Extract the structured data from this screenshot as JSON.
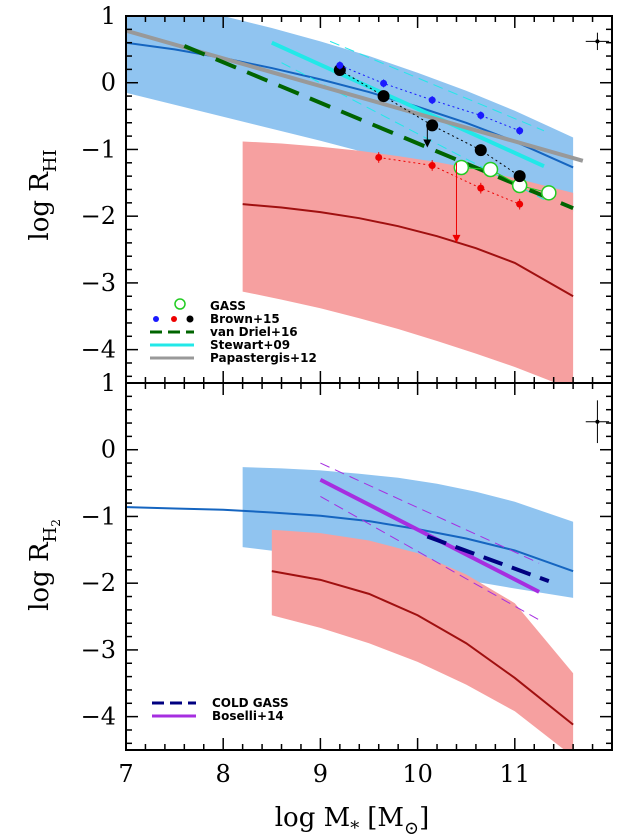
{
  "chart_data": {
    "type": "line",
    "xlabel": "log M",
    "xlabel_sub": "*",
    "xlabel_unit": "[M",
    "xlabel_unit_sub": "⊙",
    "xlabel_unit_end": "]",
    "xlim": [
      7,
      12
    ],
    "x_ticks": [
      7,
      8,
      9,
      10,
      11
    ],
    "panels": [
      {
        "id": "hi",
        "ylabel": "log R",
        "ylabel_sub": "HI",
        "ylim": [
          -4.5,
          1
        ],
        "y_ticks": [
          1,
          0,
          -1,
          -2,
          -3,
          -4
        ],
        "series": [
          {
            "kind": "band",
            "color": "#90c4f0",
            "x": [
              7,
              7.5,
              8,
              8.5,
              9,
              9.5,
              10,
              10.5,
              11,
              11.6
            ],
            "lower": [
              -0.15,
              -0.33,
              -0.51,
              -0.69,
              -0.87,
              -1.06,
              -1.25,
              -1.45,
              -1.66,
              -1.93
            ],
            "upper": [
              1.3,
              1.16,
              1.0,
              0.82,
              0.62,
              0.4,
              0.15,
              -0.12,
              -0.42,
              -0.82
            ]
          },
          {
            "kind": "line",
            "color": "#1565c0",
            "x": [
              7,
              7.5,
              8,
              8.5,
              9,
              9.5,
              10,
              10.5,
              11,
              11.6
            ],
            "y": [
              0.6,
              0.5,
              0.37,
              0.22,
              0.05,
              -0.14,
              -0.36,
              -0.6,
              -0.88,
              -1.27
            ]
          },
          {
            "kind": "band",
            "color": "#f6a0a0",
            "x": [
              8.2,
              8.6,
              9,
              9.4,
              9.8,
              10.2,
              10.6,
              11,
              11.6
            ],
            "lower": [
              -3.13,
              -3.25,
              -3.38,
              -3.53,
              -3.69,
              -3.87,
              -4.06,
              -4.26,
              -4.6
            ],
            "upper": [
              -0.88,
              -0.91,
              -0.96,
              -1.02,
              -1.1,
              -1.19,
              -1.3,
              -1.43,
              -1.65
            ]
          },
          {
            "kind": "line",
            "color": "#a01010",
            "x": [
              8.2,
              8.6,
              9,
              9.4,
              9.8,
              10.2,
              10.6,
              11,
              11.6
            ],
            "y": [
              -1.82,
              -1.87,
              -1.94,
              -2.03,
              -2.15,
              -2.3,
              -2.48,
              -2.7,
              -3.2
            ]
          },
          {
            "name": "Stewart+09",
            "kind": "line",
            "color": "#22e8e8",
            "width": 4,
            "x": [
              8.5,
              11.3
            ],
            "y": [
              0.6,
              -1.25
            ]
          },
          {
            "kind": "line",
            "color": "#22e8e8",
            "width": 1,
            "dash": "10,6",
            "x": [
              9.1,
              11.3
            ],
            "y": [
              0.62,
              -0.72
            ]
          },
          {
            "kind": "line",
            "color": "#22e8e8",
            "width": 1,
            "dash": "10,6",
            "x": [
              8.6,
              11.3
            ],
            "y": [
              0.3,
              -1.75
            ]
          },
          {
            "name": "Papastergis+12",
            "kind": "line",
            "color": "#999999",
            "width": 4,
            "x": [
              7,
              11.7
            ],
            "y": [
              0.78,
              -1.17
            ]
          },
          {
            "name": "van Driel+16",
            "kind": "line",
            "color": "#006400",
            "width": 4,
            "dash": "22,12",
            "x": [
              7.6,
              11.6
            ],
            "y": [
              0.55,
              -1.88
            ]
          },
          {
            "name": "GASS",
            "kind": "points",
            "color": "#22cc22",
            "hollow": true,
            "connect": true,
            "size": 7,
            "x": [
              10.45,
              10.75,
              11.05,
              11.35
            ],
            "y": [
              -1.27,
              -1.3,
              -1.54,
              -1.65
            ]
          },
          {
            "name": "Brown+15",
            "kind": "points",
            "color": "#000000",
            "connect": true,
            "dash": "2,3",
            "size": 6,
            "x": [
              9.2,
              9.65,
              10.15,
              10.65,
              11.05
            ],
            "y": [
              0.19,
              -0.2,
              -0.64,
              -1.01,
              -1.4
            ],
            "yerr": 0.08
          },
          {
            "kind": "points",
            "color": "#1a1aff",
            "connect": true,
            "dash": "2,3",
            "size": 3.5,
            "x": [
              9.2,
              9.65,
              10.15,
              10.65,
              11.05
            ],
            "y": [
              0.26,
              -0.01,
              -0.26,
              -0.49,
              -0.72
            ],
            "yerr": 0.06
          },
          {
            "kind": "points",
            "color": "#ee0000",
            "connect": true,
            "dash": "2,3",
            "size": 3.5,
            "x": [
              9.6,
              10.15,
              10.65,
              11.05
            ],
            "y": [
              -1.12,
              -1.24,
              -1.58,
              -1.82
            ],
            "yerr": 0.08
          }
        ],
        "arrows": [
          {
            "color": "#000000",
            "x": 10.1,
            "y_from": -0.6,
            "y_to": -0.97
          },
          {
            "color": "#ee0000",
            "x": 10.4,
            "y_from": -1.2,
            "y_to": -2.4
          }
        ],
        "corner_error": {
          "x": 11.85,
          "y": 0.62,
          "dx": 0.12,
          "dy": 0.13
        }
      },
      {
        "id": "h2",
        "ylabel": "log R",
        "ylabel_sub": "H",
        "ylabel_subsub": "2",
        "ylim": [
          -4.5,
          1
        ],
        "y_ticks": [
          1,
          0,
          -1,
          -2,
          -3,
          -4
        ],
        "series": [
          {
            "kind": "band",
            "color": "#90c4f0",
            "x": [
              8.2,
              8.6,
              9,
              9.4,
              9.8,
              10.2,
              10.6,
              11,
              11.6
            ],
            "lower": [
              -1.46,
              -1.53,
              -1.6,
              -1.69,
              -1.78,
              -1.88,
              -1.98,
              -2.08,
              -2.22
            ],
            "upper": [
              -0.26,
              -0.28,
              -0.31,
              -0.36,
              -0.42,
              -0.51,
              -0.63,
              -0.78,
              -1.08
            ]
          },
          {
            "kind": "line",
            "color": "#1565c0",
            "x": [
              7,
              7.5,
              8,
              8.5,
              9,
              9.5,
              10,
              10.5,
              11,
              11.6
            ],
            "y": [
              -0.86,
              -0.88,
              -0.9,
              -0.94,
              -0.99,
              -1.07,
              -1.19,
              -1.33,
              -1.51,
              -1.82
            ]
          },
          {
            "kind": "band",
            "color": "#f6a0a0",
            "x": [
              8.5,
              9,
              9.5,
              10,
              10.5,
              11,
              11.6
            ],
            "lower": [
              -2.48,
              -2.67,
              -2.9,
              -3.18,
              -3.52,
              -3.92,
              -4.6
            ],
            "upper": [
              -1.2,
              -1.25,
              -1.36,
              -1.55,
              -1.87,
              -2.3,
              -3.35
            ]
          },
          {
            "kind": "line",
            "color": "#a01010",
            "x": [
              8.5,
              9,
              9.5,
              10,
              10.5,
              11,
              11.6
            ],
            "y": [
              -1.82,
              -1.95,
              -2.16,
              -2.48,
              -2.9,
              -3.42,
              -4.12
            ]
          },
          {
            "name": "Boselli+14",
            "kind": "line",
            "color": "#a62ee0",
            "width": 4,
            "x": [
              9,
              11.25
            ],
            "y": [
              -0.45,
              -2.13
            ]
          },
          {
            "kind": "line",
            "color": "#a62ee0",
            "width": 1,
            "dash": "10,6",
            "x": [
              9,
              11.25
            ],
            "y": [
              -0.2,
              -1.7
            ]
          },
          {
            "kind": "line",
            "color": "#a62ee0",
            "width": 1,
            "dash": "10,6",
            "x": [
              9,
              11.25
            ],
            "y": [
              -0.7,
              -2.55
            ]
          },
          {
            "name": "COLD GASS",
            "kind": "line",
            "color": "#000080",
            "width": 4,
            "dash": "20,10",
            "x": [
              10.1,
              11.35
            ],
            "y": [
              -1.3,
              -1.97
            ]
          }
        ],
        "corner_error": {
          "x": 11.85,
          "y": 0.42,
          "dx": 0.12,
          "dy": 0.32
        }
      }
    ],
    "legends": [
      {
        "panel": 0,
        "entries": [
          {
            "label": "GASS",
            "symbol": "hollow-green"
          },
          {
            "label": "Brown+15",
            "symbol": "dots-blue-red-black"
          },
          {
            "label": "van Driel+16",
            "symbol": "dash",
            "color": "#006400"
          },
          {
            "label": "Stewart+09",
            "symbol": "line",
            "color": "#22e8e8"
          },
          {
            "label": "Papastergis+12",
            "symbol": "line",
            "color": "#999999"
          }
        ]
      },
      {
        "panel": 1,
        "entries": [
          {
            "label": "COLD GASS",
            "symbol": "dash",
            "color": "#000080"
          },
          {
            "label": "Boselli+14",
            "symbol": "line",
            "color": "#a62ee0"
          }
        ]
      }
    ]
  }
}
